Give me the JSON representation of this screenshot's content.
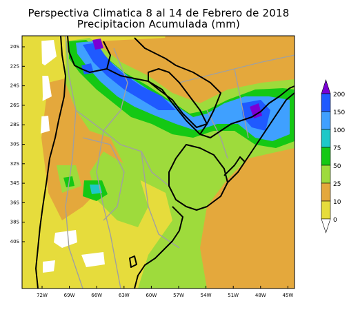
{
  "title": "Perspectiva Climatica 8 al 14 de Febrero de 2018",
  "subtitle": "Precipitacion Acumulada (mm)",
  "lat_labels": [
    "20S",
    "22S",
    "24S",
    "26S",
    "28S",
    "30S",
    "32S",
    "34S",
    "36S",
    "38S",
    "40S"
  ],
  "lon_labels": [
    "72W",
    "69W",
    "66W",
    "63W",
    "60W",
    "57W",
    "54W",
    "51W",
    "48W",
    "45W"
  ],
  "legend": {
    "labels": [
      "200",
      "150",
      "100",
      "75",
      "50",
      "25",
      "10",
      "0"
    ],
    "colors": [
      "#7a00d4",
      "#1f5aff",
      "#3fa0ff",
      "#1ec8c8",
      "#14c814",
      "#9edb3c",
      "#e4a83c",
      "#e6dc3c"
    ]
  },
  "colors": {
    "dry_yellow": "#e6dc3c",
    "orange": "#e4a83c",
    "light_green": "#9edb3c",
    "green": "#14c814",
    "cyan": "#1ec8c8",
    "light_blue": "#3fa0ff",
    "blue": "#1f5aff",
    "purple": "#7a00d4",
    "border_gray": "#a0a0a0",
    "coast_black": "#000000"
  }
}
